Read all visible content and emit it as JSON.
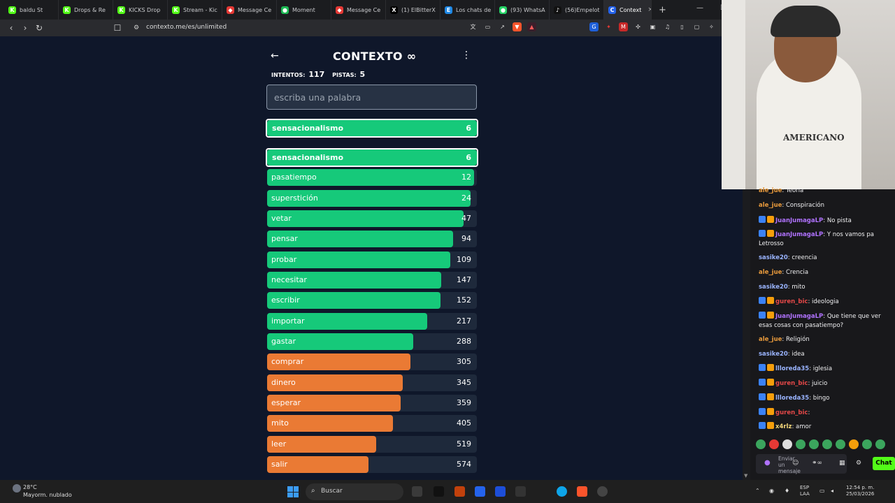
{
  "browser": {
    "tabs": [
      {
        "label": "baldu St",
        "icon_color": "#53fc18",
        "icon": "K"
      },
      {
        "label": "Drops & Re",
        "icon_color": "#53fc18",
        "icon": "K"
      },
      {
        "label": "KICKS Drop",
        "icon_color": "#53fc18",
        "icon": "K"
      },
      {
        "label": "Stream - Kic",
        "icon_color": "#53fc18",
        "icon": "K"
      },
      {
        "label": "Message Ce",
        "icon_color": "#e53935",
        "icon": "◆"
      },
      {
        "label": "Moment",
        "icon_color": "#1db954",
        "icon": "●"
      },
      {
        "label": "Message Ce",
        "icon_color": "#e53935",
        "icon": "◆"
      },
      {
        "label": "(1) ElBitterX",
        "icon_color": "#000000",
        "icon": "X"
      },
      {
        "label": "Los chats de",
        "icon_color": "#1e88e5",
        "icon": "E"
      },
      {
        "label": "(93) WhatsA",
        "icon_color": "#25d366",
        "icon": "●"
      },
      {
        "label": "(56)Empelot",
        "icon_color": "#111111",
        "icon": "♪"
      }
    ],
    "active_tab": {
      "label": "Context",
      "close": "×"
    },
    "new_tab": "+",
    "url": "contexto.me/es/unlimited"
  },
  "game": {
    "title": "CONTEXTO",
    "title_symbol": "∞",
    "back_icon": "←",
    "menu_icon": "⋮",
    "attempts_label": "INTENTOS:",
    "attempts_value": "117",
    "hints_label": "PISTAS:",
    "hints_value": "5",
    "input_placeholder": "escriba una palabra",
    "last_guess": {
      "word": "sensacionalismo",
      "rank": "6"
    },
    "guesses": [
      {
        "word": "sensacionalismo",
        "rank": "6",
        "closeness": 1.0,
        "color": "#16c97a",
        "highlight": true
      },
      {
        "word": "pasatiempo",
        "rank": "12",
        "closeness": 0.985,
        "color": "#16c97a"
      },
      {
        "word": "superstición",
        "rank": "24",
        "closeness": 0.97,
        "color": "#16c97a"
      },
      {
        "word": "vetar",
        "rank": "47",
        "closeness": 0.937,
        "color": "#16c97a"
      },
      {
        "word": "pensar",
        "rank": "94",
        "closeness": 0.887,
        "color": "#16c97a"
      },
      {
        "word": "probar",
        "rank": "109",
        "closeness": 0.873,
        "color": "#16c97a"
      },
      {
        "word": "necesitar",
        "rank": "147",
        "closeness": 0.83,
        "color": "#16c97a"
      },
      {
        "word": "escribir",
        "rank": "152",
        "closeness": 0.827,
        "color": "#16c97a"
      },
      {
        "word": "importar",
        "rank": "217",
        "closeness": 0.763,
        "color": "#16c97a"
      },
      {
        "word": "gastar",
        "rank": "288",
        "closeness": 0.697,
        "color": "#16c97a"
      },
      {
        "word": "comprar",
        "rank": "305",
        "closeness": 0.683,
        "color": "#ea7a34"
      },
      {
        "word": "dinero",
        "rank": "345",
        "closeness": 0.647,
        "color": "#ea7a34"
      },
      {
        "word": "esperar",
        "rank": "359",
        "closeness": 0.637,
        "color": "#ea7a34"
      },
      {
        "word": "mito",
        "rank": "405",
        "closeness": 0.6,
        "color": "#ea7a34"
      },
      {
        "word": "leer",
        "rank": "519",
        "closeness": 0.52,
        "color": "#ea7a34"
      },
      {
        "word": "salir",
        "rank": "574",
        "closeness": 0.483,
        "color": "#ea7a34"
      }
    ]
  },
  "chat": {
    "messages": [
      {
        "user": "ale_jue",
        "text": "Teoría",
        "color": "#e89a3c"
      },
      {
        "user": "ale_jue",
        "text": "Conspiración",
        "color": "#e89a3c"
      },
      {
        "user": "JuanJumagaLP",
        "text": "No pista",
        "color": "#b072ff",
        "badges": true
      },
      {
        "user": "JuanJumagaLP",
        "text": "Y nos vamos pa Letrosso",
        "color": "#b072ff",
        "badges": true
      },
      {
        "user": "sasike20",
        "text": "creencia",
        "color": "#9ab4ff"
      },
      {
        "user": "ale_jue",
        "text": "Crencia",
        "color": "#e89a3c"
      },
      {
        "user": "sasike20",
        "text": "mito",
        "color": "#9ab4ff"
      },
      {
        "user": "guren_bic",
        "text": "ideologia",
        "color": "#e54848",
        "badges": true
      },
      {
        "user": "JuanJumagaLP",
        "text": "Que tiene que ver esas cosas con pasatiempo?",
        "color": "#b072ff",
        "badges": true
      },
      {
        "user": "ale_jue",
        "text": "Religión",
        "color": "#e89a3c"
      },
      {
        "user": "sasike20",
        "text": "idea",
        "color": "#9ab4ff"
      },
      {
        "user": "llloreda35",
        "text": "iglesia",
        "color": "#9ab4ff",
        "badges": true
      },
      {
        "user": "guren_bic",
        "text": "juicio",
        "color": "#e54848",
        "badges": true
      },
      {
        "user": "llloreda35",
        "text": "bingo",
        "color": "#9ab4ff",
        "badges": true
      },
      {
        "user": "guren_bic",
        "text": "",
        "color": "#e54848",
        "badges": true
      },
      {
        "user": "x4rlz",
        "text": "amor",
        "color": "#f5d77a",
        "badges": true
      }
    ],
    "input_placeholder": "Enviar un mensaje",
    "send_label": "Chat"
  },
  "webcam": {
    "shirt_text": "AMERICANO"
  },
  "taskbar": {
    "weather_temp": "28°C",
    "weather_desc": "Mayorm. nublado",
    "search_label": "Buscar",
    "lang_line1": "ESP",
    "lang_line2": "LAA",
    "time": "12:54 p. m.",
    "date": "25/03/2026"
  }
}
